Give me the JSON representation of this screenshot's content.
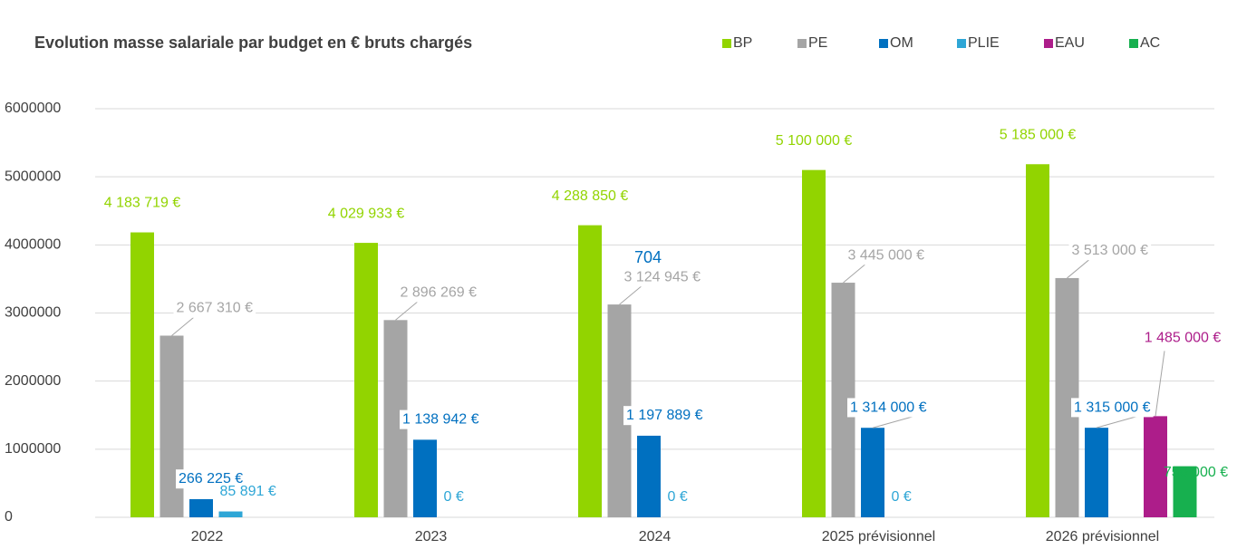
{
  "chart_data": {
    "type": "bar",
    "title": "Evolution masse salariale par budget en € bruts chargés",
    "categories": [
      "2022",
      "2023",
      "2024",
      "2025 prévisionnel",
      "2026 prévisionnel"
    ],
    "series": [
      {
        "name": "BP",
        "color": "#92d400",
        "values": [
          4183719,
          4029933,
          4288850,
          5100000,
          5185000
        ],
        "value_labels": [
          "4 183 719 €",
          "4 029 933 €",
          "4 288 850 €",
          "5 100 000 €",
          "5 185 000 €"
        ]
      },
      {
        "name": "PE",
        "color": "#a5a5a5",
        "values": [
          2667310,
          2896269,
          3124945,
          3445000,
          3513000
        ],
        "value_labels": [
          "2 667 310 €",
          "2 896 269 €",
          "3 124 945 €",
          "3 445 000 €",
          "3 513 000 €"
        ]
      },
      {
        "name": "OM",
        "color": "#0070c0",
        "values": [
          266225,
          1138942,
          1197889,
          1314000,
          1315000
        ],
        "value_labels": [
          "266 225 €",
          "1 138 942 €",
          "1 197 889 €",
          "1 314 000 €",
          "1 315 000 €"
        ]
      },
      {
        "name": "PLIE",
        "color": "#2ea6d6",
        "values": [
          85891,
          0,
          0,
          0,
          null
        ],
        "value_labels": [
          "85 891 €",
          "0 €",
          "0 €",
          "0 €",
          null
        ]
      },
      {
        "name": "EAU",
        "color": "#ad1d8a",
        "values": [
          null,
          null,
          null,
          null,
          1485000
        ],
        "value_labels": [
          null,
          null,
          null,
          null,
          "1 485 000 €"
        ]
      },
      {
        "name": "AC",
        "color": "#17b04f",
        "values": [
          null,
          null,
          null,
          null,
          750000
        ],
        "value_labels": [
          null,
          null,
          null,
          null,
          "750 000 €"
        ]
      }
    ],
    "annotations": [
      "704"
    ],
    "ylim": [
      0,
      6000000
    ],
    "yticks": [
      0,
      1000000,
      2000000,
      3000000,
      4000000,
      5000000,
      6000000
    ],
    "grid": true,
    "legend": "top"
  }
}
